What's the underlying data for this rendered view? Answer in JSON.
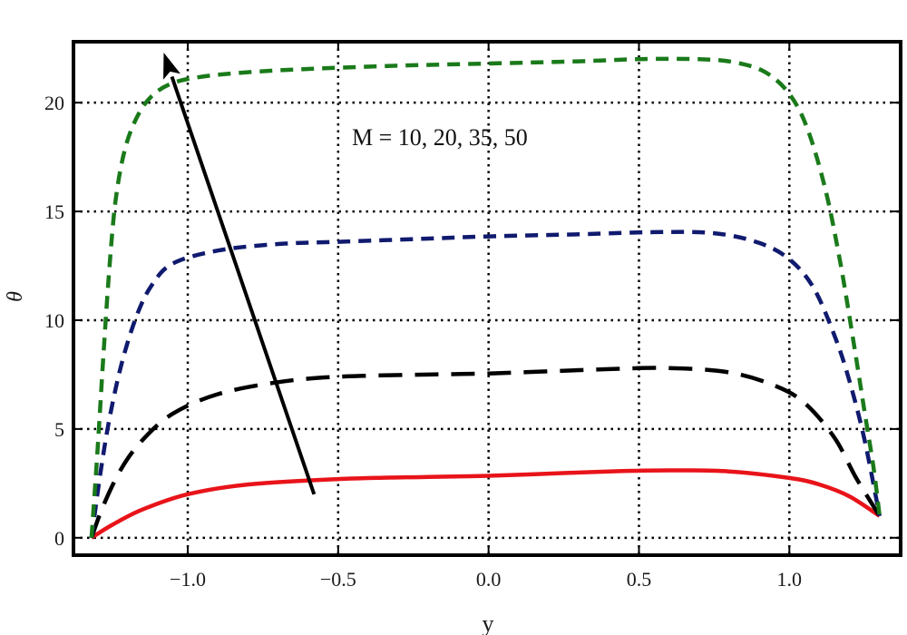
{
  "chart_data": {
    "type": "line",
    "title": "",
    "xlabel": "y",
    "ylabel": "θ",
    "xlim": [
      -1.38,
      1.37
    ],
    "ylim": [
      -0.8,
      22.8
    ],
    "xticks": [
      -1.0,
      -0.5,
      0.0,
      0.5,
      1.0
    ],
    "xtick_labels": [
      "−1.0",
      "−0.5",
      "0.0",
      "0.5",
      "1.0"
    ],
    "yticks": [
      0,
      5,
      10,
      15,
      20
    ],
    "ytick_labels": [
      "0",
      "5",
      "10",
      "15",
      "20"
    ],
    "grid": true,
    "annotation": "M = 10, 20, 35, 50",
    "arrow": {
      "from": [
        -0.58,
        2.0
      ],
      "to": [
        -1.08,
        22.3
      ]
    },
    "series": [
      {
        "name": "M = 10",
        "color": "#e8141a",
        "dash": "solid",
        "x": [
          -1.32,
          -1.25,
          -1.15,
          -1.0,
          -0.8,
          -0.5,
          -0.2,
          0.0,
          0.2,
          0.4,
          0.6,
          0.8,
          1.0,
          1.1,
          1.2,
          1.3
        ],
        "y": [
          0.0,
          0.6,
          1.3,
          2.0,
          2.45,
          2.7,
          2.8,
          2.85,
          2.95,
          3.05,
          3.1,
          3.05,
          2.75,
          2.45,
          1.9,
          1.0
        ]
      },
      {
        "name": "M = 20",
        "color": "#000000",
        "dash": "longdash",
        "x": [
          -1.32,
          -1.28,
          -1.22,
          -1.15,
          -1.05,
          -0.9,
          -0.7,
          -0.5,
          -0.2,
          0.0,
          0.2,
          0.4,
          0.6,
          0.8,
          0.95,
          1.05,
          1.15,
          1.22,
          1.3
        ],
        "y": [
          0.0,
          1.5,
          3.2,
          4.5,
          5.7,
          6.6,
          7.15,
          7.4,
          7.5,
          7.55,
          7.65,
          7.75,
          7.8,
          7.6,
          7.0,
          6.2,
          4.6,
          2.8,
          1.0
        ]
      },
      {
        "name": "M = 35",
        "color": "#101a6e",
        "dash": "dash",
        "x": [
          -1.32,
          -1.29,
          -1.26,
          -1.22,
          -1.17,
          -1.12,
          -1.05,
          -0.9,
          -0.7,
          -0.5,
          -0.2,
          0.0,
          0.3,
          0.55,
          0.75,
          0.9,
          1.0,
          1.08,
          1.15,
          1.2,
          1.25,
          1.3
        ],
        "y": [
          0.0,
          3.0,
          5.5,
          8.0,
          10.2,
          11.6,
          12.6,
          13.2,
          13.5,
          13.6,
          13.75,
          13.85,
          13.95,
          14.05,
          14.0,
          13.55,
          12.8,
          11.5,
          9.3,
          7.2,
          4.5,
          1.0
        ]
      },
      {
        "name": "M = 50",
        "color": "#1a7a1a",
        "dash": "dash",
        "x": [
          -1.32,
          -1.3,
          -1.28,
          -1.26,
          -1.24,
          -1.21,
          -1.17,
          -1.12,
          -1.05,
          -0.95,
          -0.8,
          -0.6,
          -0.3,
          0.0,
          0.3,
          0.5,
          0.7,
          0.82,
          0.92,
          1.0,
          1.06,
          1.12,
          1.17,
          1.21,
          1.25,
          1.28,
          1.3
        ],
        "y": [
          0.0,
          4.0,
          8.5,
          12.5,
          15.5,
          17.8,
          19.3,
          20.3,
          20.9,
          21.2,
          21.4,
          21.55,
          21.7,
          21.8,
          21.9,
          22.0,
          22.0,
          21.85,
          21.4,
          20.4,
          18.8,
          16.0,
          12.6,
          9.3,
          5.8,
          3.2,
          1.0
        ]
      }
    ]
  }
}
